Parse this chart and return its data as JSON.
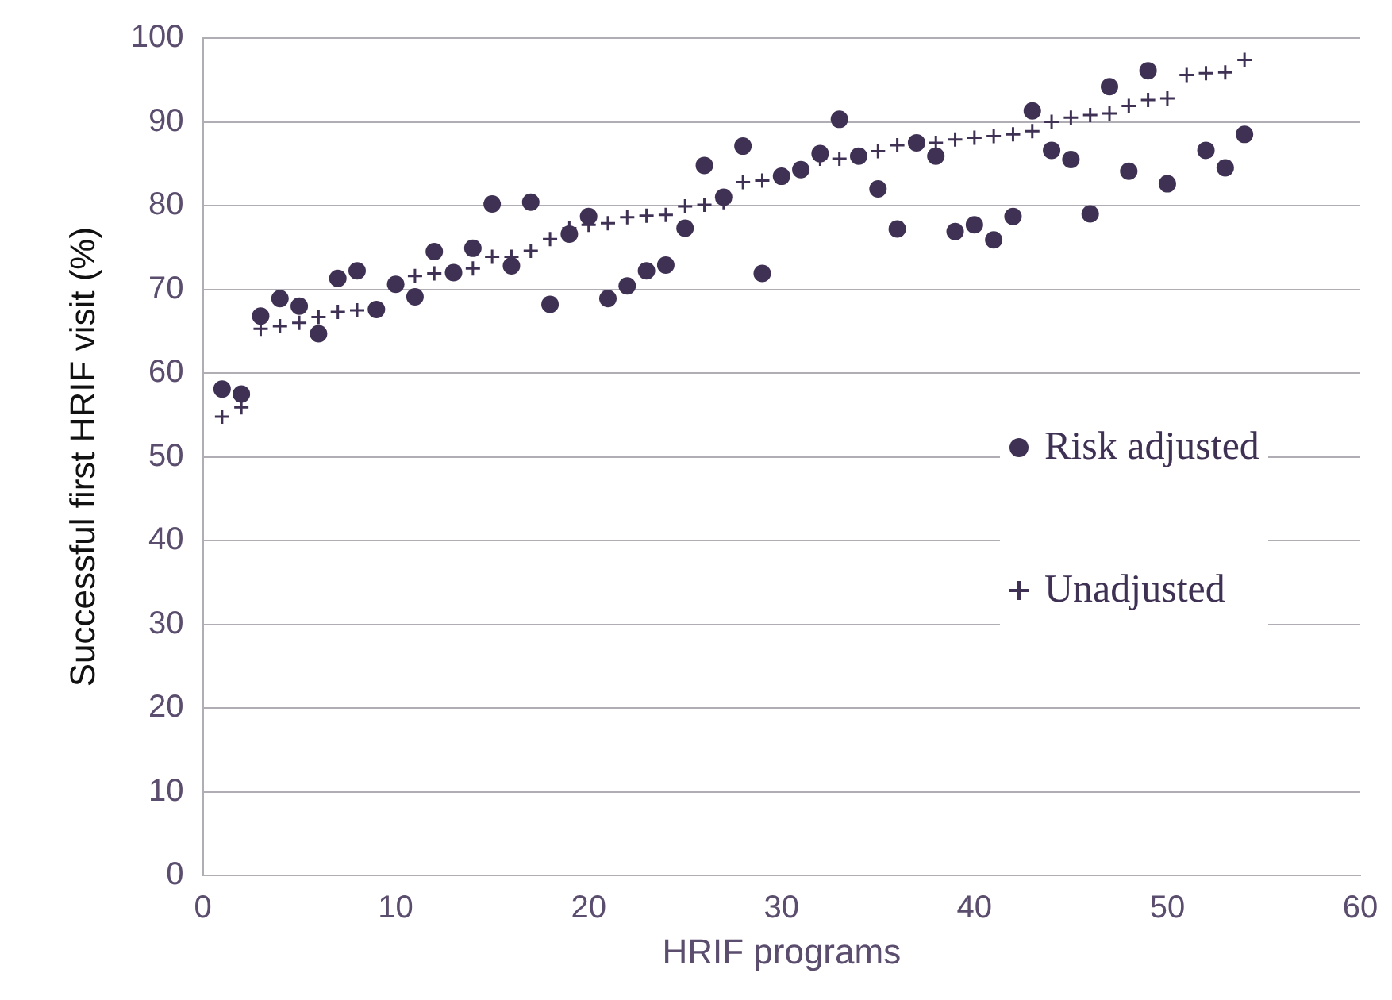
{
  "chart_data": {
    "type": "scatter",
    "xlabel": "HRIF programs",
    "ylabel": "Successful first HRIF visit (%)",
    "x": [
      1,
      2,
      3,
      4,
      5,
      6,
      7,
      8,
      9,
      10,
      11,
      12,
      13,
      14,
      15,
      16,
      17,
      18,
      19,
      20,
      21,
      22,
      23,
      24,
      25,
      26,
      27,
      28,
      29,
      30,
      31,
      32,
      33,
      34,
      35,
      36,
      37,
      38,
      39,
      40,
      41,
      42,
      43,
      44,
      45,
      46,
      47,
      48,
      49,
      50,
      51,
      52,
      53,
      54
    ],
    "series": [
      {
        "name": "Risk adjusted",
        "color": "#3f3154",
        "marker": "circle",
        "values": [
          58.1,
          57.5,
          66.8,
          68.9,
          68.0,
          64.7,
          71.3,
          72.2,
          67.6,
          70.6,
          69.1,
          74.5,
          72.0,
          74.9,
          80.2,
          72.8,
          80.4,
          68.2,
          76.6,
          78.7,
          68.9,
          70.4,
          72.2,
          72.9,
          77.3,
          84.8,
          81.0,
          87.1,
          71.9,
          83.5,
          84.3,
          86.2,
          90.3,
          85.9,
          82.0,
          77.2,
          87.5,
          85.9,
          76.9,
          77.7,
          75.9,
          78.7,
          91.3,
          86.6,
          85.5,
          79.0,
          94.2,
          84.1,
          96.1,
          82.6,
          null,
          86.6,
          84.5,
          88.5
        ]
      },
      {
        "name": "Unadjusted",
        "color": "#3f3154",
        "marker": "cross",
        "values": [
          54.8,
          55.9,
          65.3,
          65.6,
          66.0,
          66.7,
          67.3,
          67.5,
          null,
          null,
          71.6,
          71.9,
          null,
          72.5,
          73.9,
          73.9,
          74.6,
          76.0,
          77.3,
          77.7,
          77.9,
          78.6,
          78.8,
          78.9,
          79.9,
          80.1,
          80.4,
          82.8,
          83.0,
          null,
          null,
          85.6,
          85.6,
          null,
          86.5,
          87.2,
          null,
          87.5,
          87.9,
          88.1,
          88.3,
          88.5,
          88.9,
          90.0,
          90.5,
          90.8,
          91.0,
          91.9,
          92.6,
          92.8,
          95.6,
          95.8,
          95.9,
          97.4
        ]
      }
    ],
    "xlim": [
      0,
      60
    ],
    "xticks": [
      0,
      10,
      20,
      30,
      40,
      50,
      60
    ],
    "ylim": [
      0,
      100
    ],
    "yticks": [
      0,
      10,
      20,
      30,
      40,
      50,
      60,
      70,
      80,
      90,
      100
    ],
    "grid": "y",
    "legend": "right"
  }
}
